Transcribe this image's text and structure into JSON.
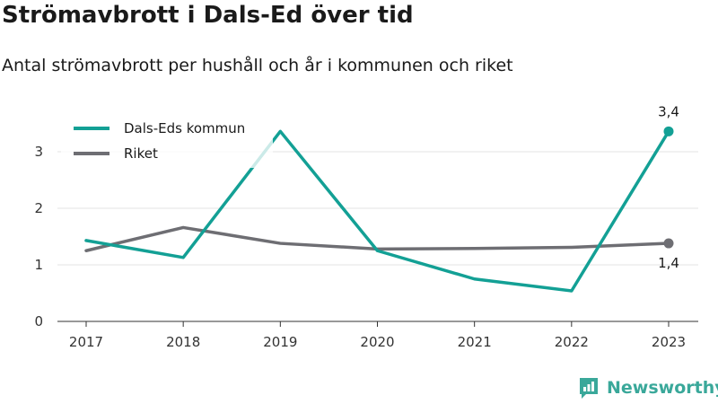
{
  "header": {
    "title": "Strömavbrott i Dals-Ed över tid",
    "subtitle": "Antal strömavbrott per hushåll och år i kommunen och riket"
  },
  "brand": {
    "name": "Newsworthy",
    "icon": "newsworthy-logo-icon",
    "color": "#3aa89a"
  },
  "chart_data": {
    "type": "line",
    "x": [
      "2017",
      "2018",
      "2019",
      "2020",
      "2021",
      "2022",
      "2023"
    ],
    "series": [
      {
        "name": "Dals-Eds kommun",
        "color": "#13a095",
        "values": [
          1.43,
          1.13,
          3.36,
          1.25,
          0.75,
          0.54,
          3.36
        ],
        "end_label": "3,4"
      },
      {
        "name": "Riket",
        "color": "#6e6e73",
        "values": [
          1.25,
          1.66,
          1.38,
          1.28,
          1.29,
          1.31,
          1.38
        ],
        "end_label": "1,4"
      }
    ],
    "ylim": [
      0,
      3.55
    ],
    "yticks": [
      "0",
      "1",
      "2",
      "3"
    ],
    "grid": true,
    "legend_position": "top-left"
  }
}
